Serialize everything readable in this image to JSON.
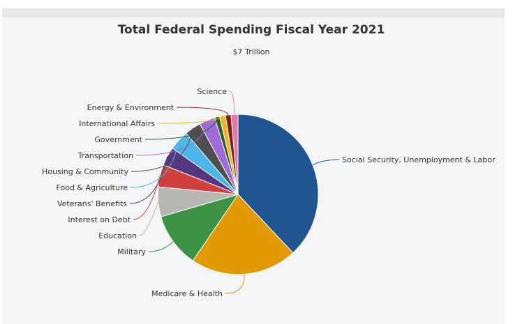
{
  "chart_data": {
    "type": "pie",
    "title": "Total Federal Spending Fiscal Year 2021",
    "subtitle": "$7 Trillion",
    "slices": [
      {
        "label": "Social Security, Unemployment & Labor",
        "value": 38.0,
        "color": "#1f5591"
      },
      {
        "label": "Medicare & Health",
        "value": 21.5,
        "color": "#e29a04"
      },
      {
        "label": "Military",
        "value": 11.0,
        "color": "#3c9344"
      },
      {
        "label": "Education",
        "value": 6.0,
        "color": "#b9b7b3"
      },
      {
        "label": "Interest on Debt",
        "value": 4.5,
        "color": "#d1403a"
      },
      {
        "label": "Veterans' Benefits",
        "value": 3.8,
        "color": "#54377f"
      },
      {
        "label": "Food & Agriculture",
        "value": 4.0,
        "color": "#4bb6ea"
      },
      {
        "label": "Housing & Community",
        "value": 3.3,
        "color": "#4f4f4f"
      },
      {
        "label": "Transportation",
        "value": 3.2,
        "color": "#a06ad6"
      },
      {
        "label": "Government",
        "value": 1.0,
        "color": "#2d5d2d"
      },
      {
        "label": "International Affairs",
        "value": 1.2,
        "color": "#f0b330"
      },
      {
        "label": "Energy & Environment",
        "value": 1.1,
        "color": "#7b1f1f"
      },
      {
        "label": "Science",
        "value": 1.4,
        "color": "#e37aa3"
      }
    ]
  }
}
